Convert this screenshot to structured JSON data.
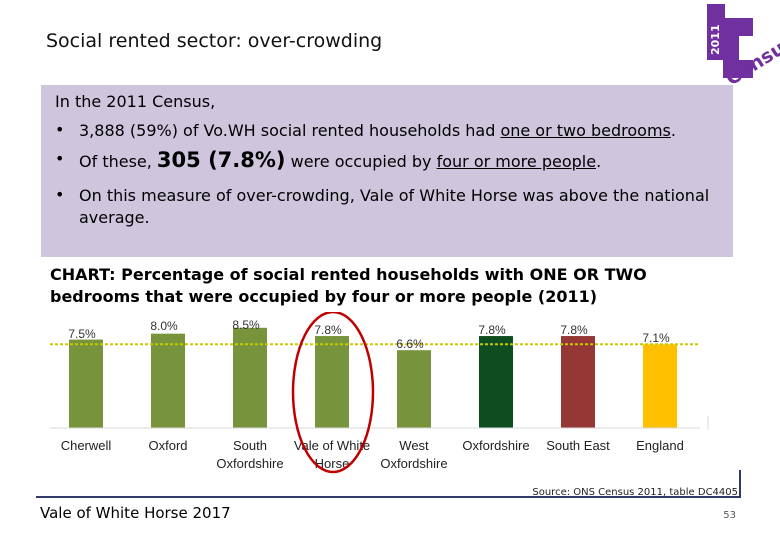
{
  "slide": {
    "title": "Social rented sector: over-crowding",
    "logo_year": "2011",
    "logo_word": "Census",
    "intro": "In the 2011 Census,",
    "bullet1_pre": "3,888 (59%) of Vo.WH social rented households had ",
    "bullet1_u": "one or two bedrooms",
    "bullet1_post": ".",
    "bullet2_pre": "Of these, ",
    "bullet2_big": "305 (7.8%)",
    "bullet2_mid": " were occupied by ",
    "bullet2_u": "four or more people",
    "bullet2_post": ".",
    "bullet3": "On this measure of over-crowding, Vale of White Horse was above the national average.",
    "chart_title": "CHART: Percentage of social rented households with ONE OR TWO bedrooms that were occupied by four or more people (2011)",
    "footer": "Vale of White Horse 2017",
    "source": "Source: ONS Census 2011, table DC4405",
    "page_number": "53"
  },
  "colors": {
    "info_bg": "#cfc6de",
    "district_bar": "#77933c",
    "oxfordshire_bar": "#0e4d20",
    "southeast_bar": "#953735",
    "england_bar": "#ffc000",
    "reference_line": "#c9c900",
    "highlight_ellipse": "#c00000",
    "logo_purple": "#7030a0"
  },
  "chart_data": {
    "type": "bar",
    "categories": [
      "Cherwell",
      "Oxford",
      "South Oxfordshire",
      "Vale of White Horse",
      "West Oxfordshire",
      "Oxfordshire",
      "South East",
      "England"
    ],
    "category_lines": [
      [
        "Cherwell"
      ],
      [
        "Oxford"
      ],
      [
        "South",
        "Oxfordshire"
      ],
      [
        "Vale of White",
        "Horse"
      ],
      [
        "West",
        "Oxfordshire"
      ],
      [
        "Oxfordshire"
      ],
      [
        "South East"
      ],
      [
        "England"
      ]
    ],
    "values": [
      7.5,
      8.0,
      8.5,
      7.8,
      6.6,
      7.8,
      7.8,
      7.1
    ],
    "labels": [
      "7.5%",
      "8.0%",
      "8.5%",
      "7.8%",
      "6.6%",
      "7.8%",
      "7.8%",
      "7.1%"
    ],
    "bar_colors": [
      "#77933c",
      "#77933c",
      "#77933c",
      "#77933c",
      "#77933c",
      "#0e4d20",
      "#953735",
      "#ffc000"
    ],
    "reference_line": 7.1,
    "highlighted": "Vale of White Horse",
    "ylim": [
      0,
      9.5
    ],
    "grid": false,
    "legend": "none"
  }
}
